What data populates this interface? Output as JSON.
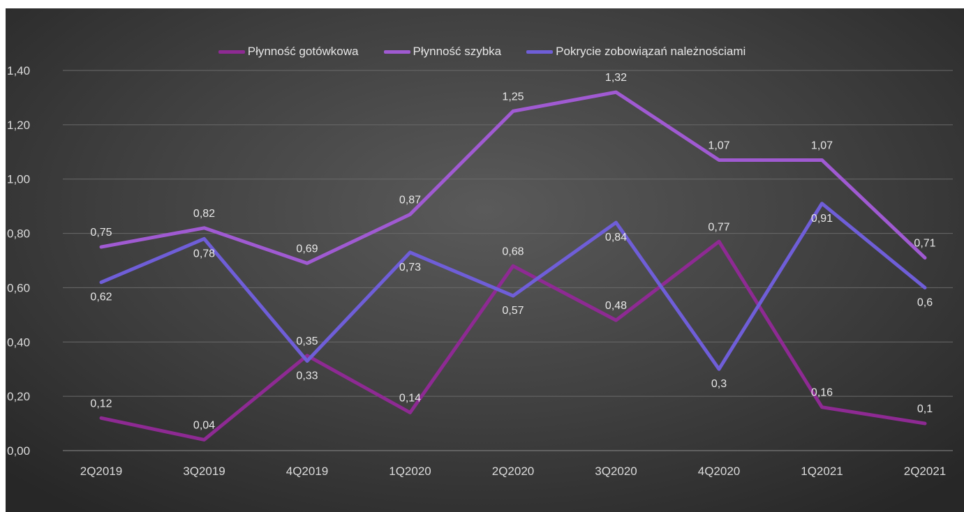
{
  "chart_data": {
    "type": "line",
    "categories": [
      "2Q2019",
      "3Q2019",
      "4Q2019",
      "1Q2020",
      "2Q2020",
      "3Q2020",
      "4Q2020",
      "1Q2021",
      "2Q2021"
    ],
    "ylim": [
      0,
      1.4
    ],
    "yticks": [
      "0,00",
      "0,20",
      "0,40",
      "0,60",
      "0,80",
      "1,00",
      "1,20",
      "1,40"
    ],
    "grid": true,
    "legend_position": "top",
    "series": [
      {
        "name": "Płynność gotówkowa",
        "color": "#8e2a93",
        "values": [
          0.12,
          0.04,
          0.35,
          0.14,
          0.68,
          0.48,
          0.77,
          0.16,
          0.1
        ],
        "labels": [
          "0,12",
          "0,04",
          "0,35",
          "0,14",
          "0,68",
          "0,48",
          "0,77",
          "0,16",
          "0,1"
        ]
      },
      {
        "name": "Płynność szybka",
        "color": "#a05ad2",
        "values": [
          0.75,
          0.82,
          0.69,
          0.87,
          1.25,
          1.32,
          1.07,
          1.07,
          0.71
        ],
        "labels": [
          "0,75",
          "0,82",
          "0,69",
          "0,87",
          "1,25",
          "1,32",
          "1,07",
          "1,07",
          "0,71"
        ]
      },
      {
        "name": "Pokrycie zobowiązań należnościami",
        "color": "#6f5ed8",
        "values": [
          0.62,
          0.78,
          0.33,
          0.73,
          0.57,
          0.84,
          0.3,
          0.91,
          0.6
        ],
        "labels": [
          "0,62",
          "0,78",
          "0,33",
          "0,73",
          "0,57",
          "0,84",
          "0,3",
          "0,91",
          "0,6"
        ]
      }
    ]
  }
}
